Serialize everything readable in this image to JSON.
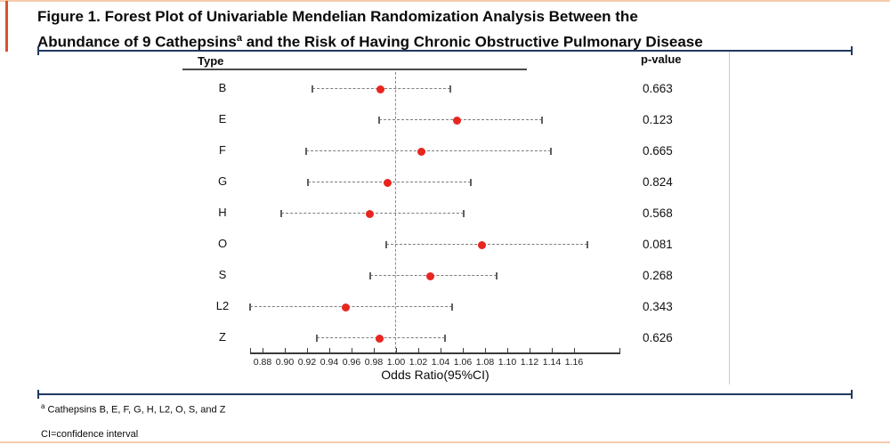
{
  "figure": {
    "title_line1": "Figure 1. Forest Plot of Univariable Mendelian Randomization Analysis Between the",
    "title_line2_before_sup": "Abundance of 9 Cathepsins",
    "title_sup": "a",
    "title_line2_after_sup": " and the Risk of Having Chronic Obstructive Pulmonary Disease"
  },
  "table": {
    "type_header": "Type",
    "pvalue_header": "p-value"
  },
  "chart_data": {
    "type": "forest",
    "title": "Forest Plot of Univariable Mendelian Randomization Analysis Between the Abundance of 9 Cathepsins and the Risk of Having Chronic Obstructive Pulmonary Disease",
    "xlabel": "Odds Ratio(95%CI)",
    "x_ticks": [
      0.88,
      0.9,
      0.92,
      0.94,
      0.96,
      0.98,
      1.0,
      1.02,
      1.04,
      1.06,
      1.08,
      1.1,
      1.12,
      1.14,
      1.16
    ],
    "xlim": [
      0.869,
      1.202
    ],
    "reference_line": 1.0,
    "grid": false,
    "legend": "none",
    "rows": [
      {
        "type": "B",
        "or": 0.986,
        "ci_low": 0.925,
        "ci_high": 1.049,
        "p_value": "0.663"
      },
      {
        "type": "E",
        "or": 1.055,
        "ci_low": 0.985,
        "ci_high": 1.131,
        "p_value": "0.123"
      },
      {
        "type": "F",
        "or": 1.023,
        "ci_low": 0.919,
        "ci_high": 1.139,
        "p_value": "0.665"
      },
      {
        "type": "G",
        "or": 0.992,
        "ci_low": 0.921,
        "ci_high": 1.067,
        "p_value": "0.824"
      },
      {
        "type": "H",
        "or": 0.976,
        "ci_low": 0.897,
        "ci_high": 1.061,
        "p_value": "0.568"
      },
      {
        "type": "O",
        "or": 1.077,
        "ci_low": 0.991,
        "ci_high": 1.172,
        "p_value": "0.081"
      },
      {
        "type": "S",
        "or": 1.031,
        "ci_low": 0.977,
        "ci_high": 1.09,
        "p_value": "0.268"
      },
      {
        "type": "L2",
        "or": 0.955,
        "ci_low": 0.869,
        "ci_high": 1.05,
        "p_value": "0.343"
      },
      {
        "type": "Z",
        "or": 0.985,
        "ci_low": 0.929,
        "ci_high": 1.044,
        "p_value": "0.626"
      }
    ]
  },
  "footnotes": {
    "cathepsins_sup": "a",
    "cathepsins_text": " Cathepsins B, E, F, G, H, L2, O, S, and Z",
    "ci": "CI=confidence interval"
  },
  "colors": {
    "accent_bar": "#d9512c",
    "peach_border": "#f8cbae",
    "navy_rule": "#1f3a60",
    "point_red": "#e8251f",
    "ci_gray": "#7d7d7d",
    "axis_black": "#3a3a3a"
  }
}
